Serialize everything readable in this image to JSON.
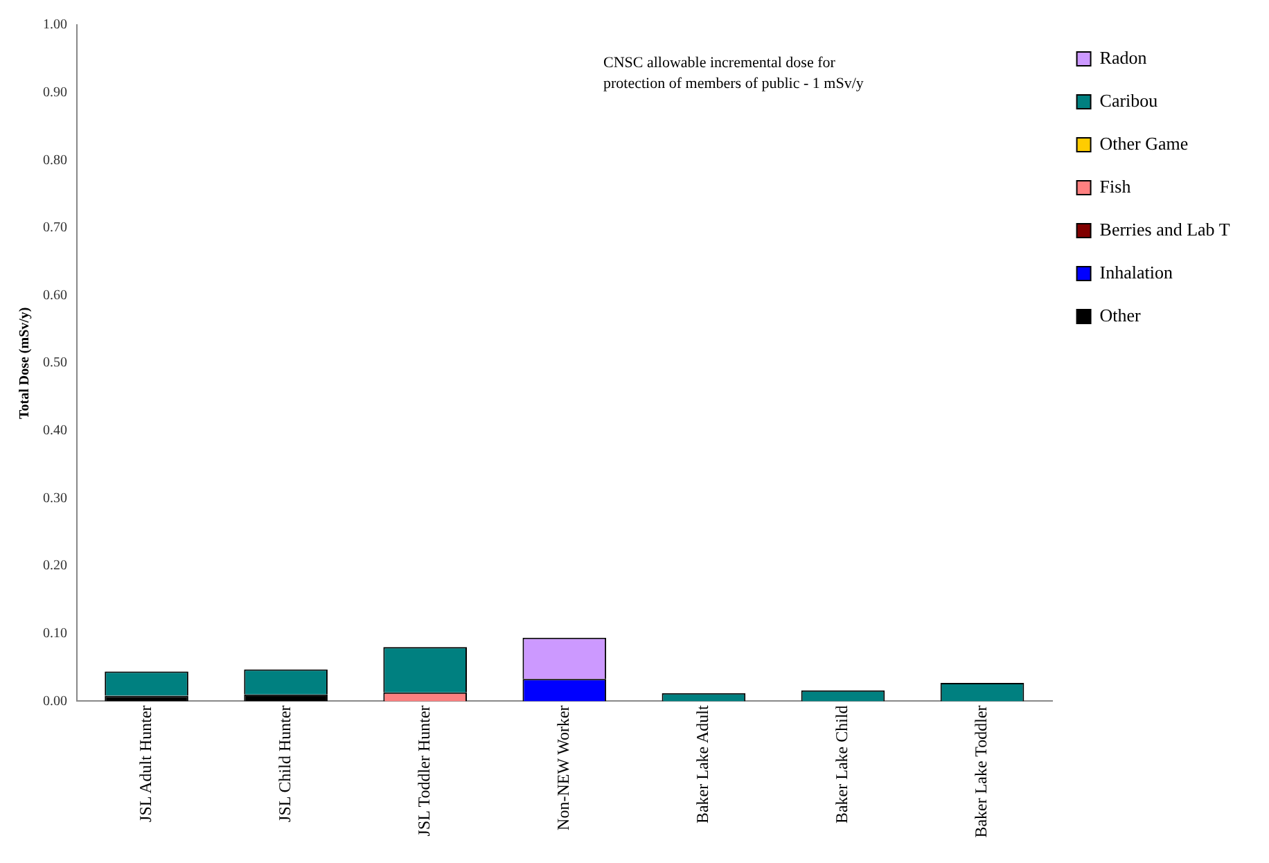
{
  "chart_data": {
    "type": "bar",
    "stacked": true,
    "ylabel": "Total Dose (mSv/y)",
    "categories": [
      "JSL Adult Hunter",
      "JSL Child Hunter",
      "JSL Toddler Hunter",
      "Non-NEW Worker",
      "Baker Lake Adult",
      "Baker Lake Child",
      "Baker Lake Toddler"
    ],
    "series": [
      {
        "name": "Other",
        "color": "#000000",
        "values": [
          0.008,
          0.01,
          null,
          null,
          null,
          null,
          null
        ]
      },
      {
        "name": "Inhalation",
        "color": "#0000ff",
        "values": [
          null,
          null,
          null,
          0.033,
          null,
          null,
          null
        ]
      },
      {
        "name": "Berries and Lab T",
        "color": "#800000",
        "values": [
          null,
          null,
          null,
          null,
          null,
          null,
          null
        ]
      },
      {
        "name": "Fish",
        "color": "#ff8080",
        "values": [
          null,
          null,
          0.013,
          null,
          null,
          null,
          null
        ]
      },
      {
        "name": "Other Game",
        "color": "#ffcc00",
        "values": [
          null,
          null,
          null,
          null,
          null,
          null,
          null
        ]
      },
      {
        "name": "Caribou",
        "color": "#008080",
        "values": [
          0.036,
          0.037,
          0.067,
          null,
          0.012,
          0.016,
          0.027
        ]
      },
      {
        "name": "Radon",
        "color": "#cc99ff",
        "values": [
          null,
          null,
          null,
          0.061,
          null,
          null,
          null
        ]
      }
    ],
    "ylim": [
      0,
      1
    ],
    "yticks": [
      {
        "value": 0,
        "label": "0.00"
      },
      {
        "value": 0.1,
        "label": "0.10"
      },
      {
        "value": 0.2,
        "label": "0.20"
      },
      {
        "value": 0.3,
        "label": "0.30"
      },
      {
        "value": 0.4,
        "label": "0.40"
      },
      {
        "value": 0.5,
        "label": "0.50"
      },
      {
        "value": 0.6,
        "label": "0.60"
      },
      {
        "value": 0.7,
        "label": "0.70"
      },
      {
        "value": 0.8,
        "label": "0.80"
      },
      {
        "value": 0.9,
        "label": "0.90"
      },
      {
        "value": 1,
        "label": "1.00"
      }
    ],
    "grid": false,
    "legend": "top right",
    "annotations": [
      "CNSC allowable incremental dose for protection of members of public - 1 mSv/y"
    ]
  }
}
